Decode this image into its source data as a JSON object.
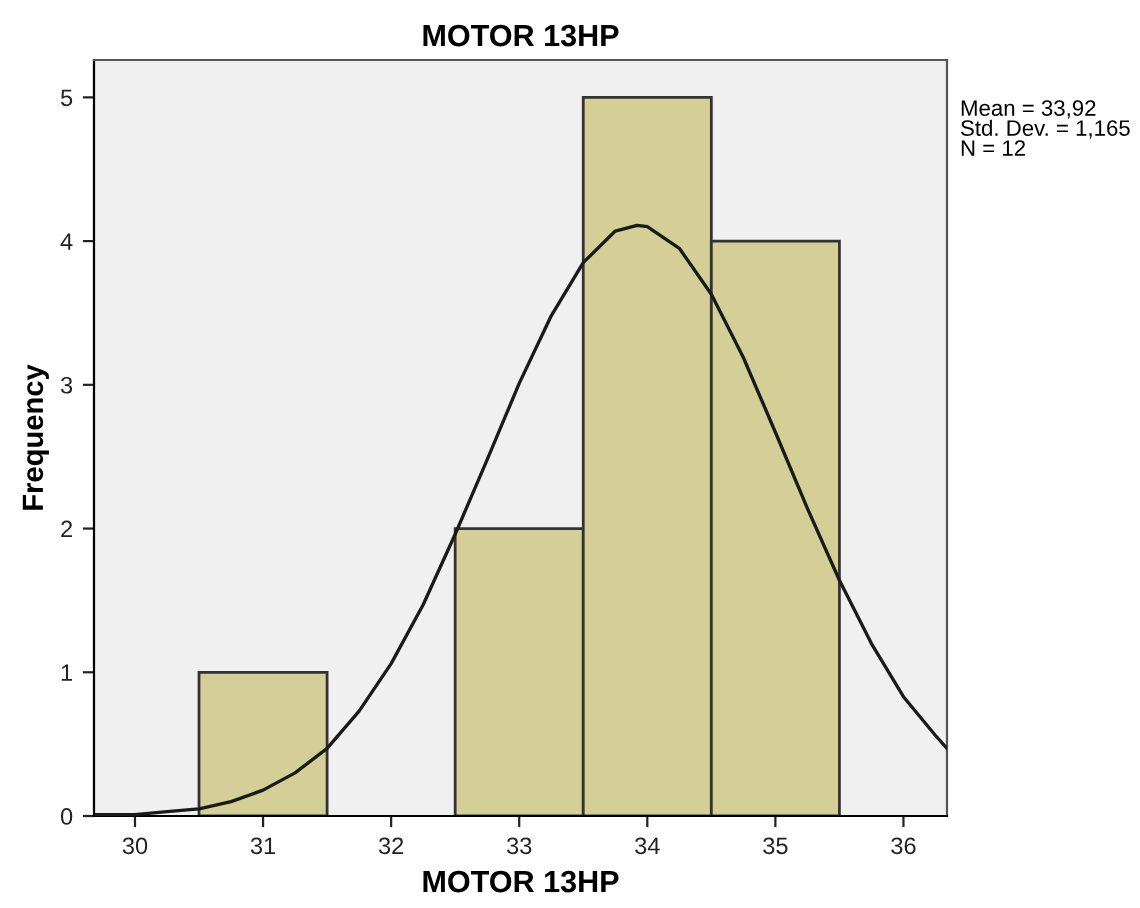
{
  "chart_data": {
    "type": "histogram",
    "title": "MOTOR 13HP",
    "xlabel": "MOTOR 13HP",
    "ylabel": "Frequency",
    "bins": [
      30.5,
      31.5,
      32.5,
      33.5,
      34.5,
      35.5
    ],
    "values": [
      1,
      0,
      2,
      5,
      4
    ],
    "color": "#d3cf97",
    "series": [
      {
        "type": "line",
        "color": "#1a1a1a",
        "x": [
          29.7,
          30,
          30.25,
          30.5,
          30.75,
          31,
          31.25,
          31.5,
          31.75,
          32,
          32.25,
          32.5,
          32.75,
          33,
          33.25,
          33.5,
          33.75,
          33.92,
          34,
          34.25,
          34.5,
          34.75,
          35,
          35.25,
          35.5,
          35.75,
          36,
          36.25,
          36.34
        ],
        "values": [
          0.01,
          0.01,
          0.03,
          0.05,
          0.1,
          0.18,
          0.3,
          0.47,
          0.73,
          1.06,
          1.47,
          1.96,
          2.48,
          3.01,
          3.48,
          3.85,
          4.07,
          4.11,
          4.1,
          3.95,
          3.63,
          3.19,
          2.67,
          2.14,
          1.64,
          1.2,
          0.83,
          0.56,
          0.47
        ]
      }
    ],
    "xlim": [
      29.68,
      36.34
    ],
    "ylim": [
      0,
      5.26
    ],
    "xticks": [
      30,
      31,
      32,
      33,
      34,
      35,
      36
    ],
    "yticks": [
      0,
      1,
      2,
      3,
      4,
      5
    ],
    "grid": false,
    "legend": false,
    "annotations": [
      "Mean = 33,92",
      "Std. Dev. = 1,165",
      "N = 12"
    ]
  }
}
